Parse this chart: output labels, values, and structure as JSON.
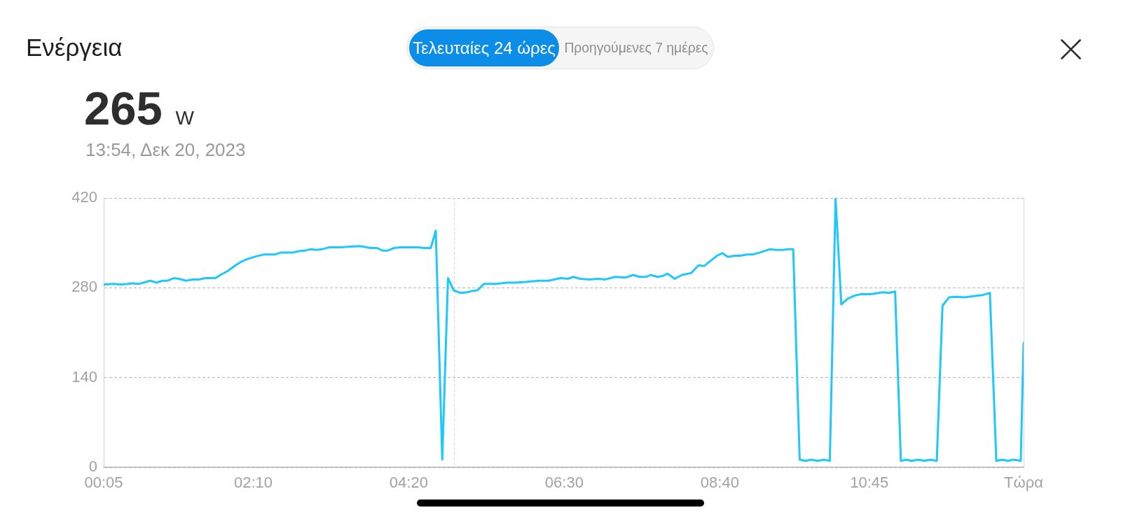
{
  "chart_data": {
    "type": "line",
    "title": "Ενέργεια",
    "subtitle": "13:54, Δεκ 20, 2023",
    "annotations": [
      "265 W",
      "Τελευταίες 24 ώρες",
      "Προηγούμενες 7 ημέρες"
    ],
    "x": [
      0.083,
      0.22,
      0.33,
      0.49,
      0.57,
      0.64,
      0.73,
      0.82,
      0.9,
      0.97,
      1.06,
      1.13,
      1.23,
      1.32,
      1.41,
      1.5,
      1.64,
      1.71,
      1.81,
      1.92,
      1.99,
      2.09,
      2.21,
      2.32,
      2.47,
      2.56,
      2.72,
      2.8,
      2.89,
      2.96,
      3.05,
      3.12,
      3.22,
      3.38,
      3.48,
      3.64,
      3.71,
      3.8,
      3.89,
      3.97,
      4.04,
      4.13,
      4.22,
      4.46,
      4.55,
      4.64,
      4.71,
      4.8,
      4.88,
      4.96,
      5.05,
      5.15,
      5.21,
      5.29,
      5.38,
      5.55,
      5.7,
      5.81,
      5.96,
      6.14,
      6.28,
      6.45,
      6.55,
      6.63,
      6.72,
      6.85,
      6.97,
      7.07,
      7.21,
      7.36,
      7.46,
      7.55,
      7.64,
      7.7,
      7.8,
      7.86,
      7.94,
      8.04,
      8.14,
      8.27,
      8.37,
      8.45,
      8.55,
      8.63,
      8.7,
      8.78,
      8.87,
      8.95,
      9.05,
      9.13,
      9.23,
      9.36,
      9.46,
      9.54,
      9.62,
      9.69,
      9.78,
      9.86,
      9.94,
      10.03,
      10.12,
      10.2,
      10.28,
      10.36,
      10.45,
      10.55,
      10.64,
      10.77,
      10.94,
      11.02,
      11.11,
      11.19,
      11.26,
      11.34,
      11.43,
      11.52,
      11.6,
      11.69,
      11.77,
      11.86,
      11.95,
      12.08,
      12.21,
      12.34,
      12.43,
      12.52,
      12.6,
      12.68,
      12.76,
      12.86,
      12.9
    ],
    "series": [
      {
        "color": "#1ec8fd",
        "values": [
          285,
          286,
          285,
          287,
          286,
          288,
          291,
          288,
          291,
          291,
          295,
          294,
          291,
          293,
          293,
          295,
          295,
          300,
          306,
          315,
          320,
          325,
          329,
          332,
          332,
          335,
          335,
          337,
          338,
          340,
          339,
          340,
          343,
          343,
          344,
          345,
          344,
          342,
          342,
          338,
          338,
          342,
          343,
          343,
          342,
          342,
          369,
          12,
          295,
          276,
          272,
          273,
          275,
          276,
          286,
          286,
          288,
          288,
          289,
          291,
          291,
          295,
          294,
          297,
          294,
          293,
          294,
          293,
          297,
          296,
          300,
          297,
          297,
          300,
          297,
          298,
          302,
          294,
          300,
          303,
          315,
          314,
          323,
          330,
          334,
          328,
          330,
          330,
          332,
          332,
          335,
          340,
          339,
          339,
          340,
          340,
          12,
          10,
          12,
          10,
          12,
          10,
          419,
          254,
          263,
          268,
          270,
          270,
          273,
          272,
          274,
          10,
          12,
          10,
          12,
          10,
          12,
          10,
          252,
          265,
          266,
          265,
          267,
          269,
          272,
          10,
          12,
          10,
          12,
          10,
          194
        ]
      }
    ],
    "xlim": [
      0.083,
      12.9
    ],
    "xticks": [
      {
        "value": 0.083,
        "label": "00:05"
      },
      {
        "value": 2.167,
        "label": "02:10"
      },
      {
        "value": 4.333,
        "label": "04:20"
      },
      {
        "value": 6.5,
        "label": "06:30"
      },
      {
        "value": 8.667,
        "label": "08:40"
      },
      {
        "value": 10.75,
        "label": "10:45"
      },
      {
        "value": 12.9,
        "label": "Τώρα"
      }
    ],
    "ylim": [
      0,
      420
    ],
    "yticks": [
      0,
      140,
      280,
      420
    ],
    "grid": "y",
    "marker": "none",
    "ref_lines": [
      {
        "axis": "x",
        "value": 4.96,
        "color": "#d4d4d4",
        "line_style": "dashed"
      }
    ]
  }
}
